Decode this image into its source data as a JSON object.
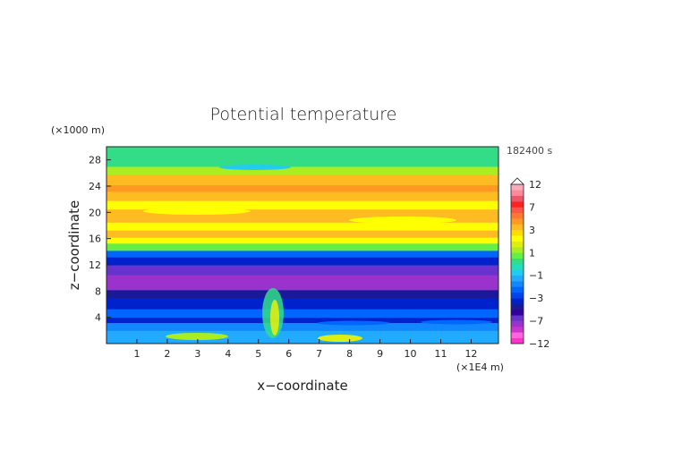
{
  "chart_data": {
    "type": "heatmap",
    "title": "Potential temperature",
    "xlabel": "x−coordinate",
    "ylabel": "z−coordinate",
    "x_unit": "(×1E4 m)",
    "y_unit": "(×1000 m)",
    "time_label": "182400 s",
    "xlim": [
      0,
      12.9
    ],
    "ylim": [
      0,
      30
    ],
    "x_ticks": [
      "1",
      "2",
      "3",
      "4",
      "5",
      "6",
      "7",
      "8",
      "9",
      "10",
      "11",
      "12"
    ],
    "y_ticks": [
      "4",
      "8",
      "12",
      "16",
      "20",
      "24",
      "28"
    ],
    "colorbar": {
      "tick_labels": [
        "12",
        "7",
        "3",
        "1",
        "−1",
        "−3",
        "−7",
        "−12"
      ],
      "levels": [
        -12,
        -10,
        -9,
        -8,
        -7,
        -6,
        -5,
        -4,
        -3,
        -2.5,
        -2,
        -1.5,
        -1,
        -0.5,
        0,
        0.5,
        1,
        1.5,
        2,
        2.5,
        3,
        4,
        5,
        6,
        7,
        8,
        9,
        10,
        12
      ],
      "colors": [
        "#ff33cc",
        "#ff66dd",
        "#cc33cc",
        "#9933cc",
        "#6633cc",
        "#330099",
        "#1a1a99",
        "#0022cc",
        "#0044ee",
        "#0066ff",
        "#1188ff",
        "#22aaff",
        "#22ccee",
        "#22ddbb",
        "#33dd88",
        "#66ee44",
        "#aaee22",
        "#ddee11",
        "#ffff00",
        "#ffdd00",
        "#ffbb22",
        "#ff9922",
        "#ff7733",
        "#ff5544",
        "#ff2222",
        "#ee5566",
        "#ff8899",
        "#ffaabb"
      ]
    },
    "bands": [
      {
        "z": [
          0,
          2
        ],
        "value": -1.2
      },
      {
        "z": [
          2,
          3.2
        ],
        "value": -1.8
      },
      {
        "z": [
          3.2,
          4
        ],
        "value": -3.2
      },
      {
        "z": [
          4,
          5.3
        ],
        "value": -2.2
      },
      {
        "z": [
          5.3,
          7
        ],
        "value": -3.5
      },
      {
        "z": [
          7,
          8.2
        ],
        "value": -4.5
      },
      {
        "z": [
          8.2,
          10.5
        ],
        "value": -7.5
      },
      {
        "z": [
          10.5,
          12
        ],
        "value": -6.2
      },
      {
        "z": [
          12,
          13.2
        ],
        "value": -3.5
      },
      {
        "z": [
          13.2,
          14.2
        ],
        "value": -2.2
      },
      {
        "z": [
          14.2,
          15.3
        ],
        "value": 0.8
      },
      {
        "z": [
          15.3,
          16.2
        ],
        "value": 2.2
      },
      {
        "z": [
          16.2,
          17.3
        ],
        "value": 3.5
      },
      {
        "z": [
          17.3,
          18.5
        ],
        "value": 2.2
      },
      {
        "z": [
          18.5,
          20.5
        ],
        "value": 3.3
      },
      {
        "z": [
          20.5,
          21.8
        ],
        "value": 2.3
      },
      {
        "z": [
          21.8,
          23.2
        ],
        "value": 3.4
      },
      {
        "z": [
          23.2,
          24.2
        ],
        "value": 4.5
      },
      {
        "z": [
          24.2,
          25.8
        ],
        "value": 3.2
      },
      {
        "z": [
          25.8,
          27
        ],
        "value": 1.2
      },
      {
        "z": [
          27,
          30
        ],
        "value": 0.2
      }
    ]
  }
}
